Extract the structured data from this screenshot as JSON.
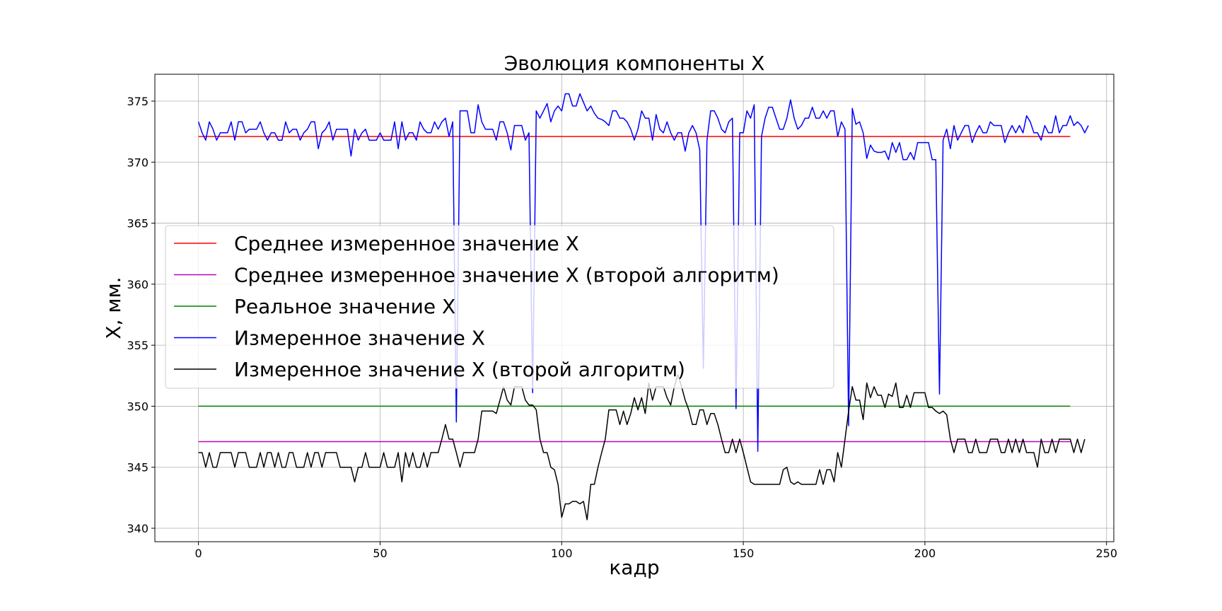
{
  "chart_data": {
    "type": "line",
    "title": "Эволюция компоненты X",
    "xlabel": "кадр",
    "ylabel": "X, мм.",
    "xlim": [
      -12,
      252
    ],
    "ylim": [
      338.9,
      377.2
    ],
    "xticks": [
      0,
      50,
      100,
      150,
      200,
      250
    ],
    "yticks": [
      340,
      345,
      350,
      355,
      360,
      365,
      370,
      375
    ],
    "grid": true,
    "legend_position": "center-left",
    "series": [
      {
        "name": "Среднее измеренное значение X",
        "color": "#ff0000",
        "x": [
          0,
          240
        ],
        "y": [
          372.1,
          372.1
        ]
      },
      {
        "name": "Среднее измеренное значение X (второй алгоритм)",
        "color": "#bf00bf",
        "x": [
          0,
          240
        ],
        "y": [
          347.1,
          347.1
        ]
      },
      {
        "name": "Реальное значение X",
        "color": "#008000",
        "x": [
          0,
          240
        ],
        "y": [
          350.0,
          350.0
        ]
      },
      {
        "name": "Измеренное значение X",
        "color": "#0000ff",
        "x_start": 0,
        "y": [
          373.3,
          372.4,
          371.8,
          373.3,
          372.7,
          371.8,
          372.4,
          372.4,
          372.4,
          373.3,
          371.8,
          373.3,
          373.3,
          372.4,
          372.7,
          372.7,
          372.7,
          373.3,
          372.4,
          371.8,
          372.4,
          372.4,
          371.8,
          371.8,
          373.3,
          372.4,
          372.7,
          372.7,
          371.8,
          372.4,
          372.7,
          373.3,
          373.3,
          371.1,
          372.4,
          372.7,
          373.3,
          371.8,
          372.7,
          372.7,
          372.7,
          372.7,
          370.5,
          372.7,
          371.8,
          372.4,
          372.7,
          371.8,
          371.8,
          371.8,
          372.4,
          371.8,
          371.8,
          371.8,
          373.3,
          371.1,
          373.3,
          371.8,
          372.4,
          372.4,
          371.8,
          373.3,
          372.7,
          372.4,
          372.4,
          373.3,
          372.7,
          373.3,
          373.6,
          372.1,
          373.3,
          348.7,
          374.2,
          374.2,
          374.2,
          372.4,
          372.4,
          374.7,
          373.3,
          372.7,
          372.7,
          372.7,
          371.8,
          373.3,
          373.3,
          372.4,
          371.0,
          373.0,
          373.0,
          373.0,
          371.8,
          372.4,
          351.1,
          374.2,
          373.6,
          374.2,
          374.8,
          373.3,
          374.2,
          374.6,
          374.2,
          375.6,
          375.6,
          374.6,
          374.6,
          375.6,
          374.9,
          374.2,
          374.6,
          374.0,
          373.6,
          373.5,
          373.3,
          373.0,
          374.2,
          374.2,
          373.6,
          373.6,
          373.3,
          372.7,
          371.8,
          372.7,
          374.2,
          373.6,
          373.6,
          371.8,
          373.9,
          372.7,
          372.4,
          373.3,
          372.4,
          371.8,
          372.4,
          372.4,
          370.9,
          372.4,
          373.0,
          372.4,
          371.0,
          353.1,
          371.8,
          374.2,
          374.2,
          373.6,
          372.7,
          372.4,
          373.3,
          373.6,
          349.8,
          372.4,
          372.4,
          374.2,
          373.6,
          374.7,
          346.3,
          372.1,
          373.6,
          374.5,
          374.5,
          373.6,
          372.7,
          372.7,
          373.6,
          375.1,
          373.6,
          372.7,
          373.0,
          373.6,
          373.6,
          374.5,
          373.6,
          373.6,
          374.2,
          373.6,
          374.2,
          374.2,
          372.1,
          373.3,
          372.7,
          348.4,
          374.4,
          373.1,
          373.3,
          372.4,
          370.3,
          371.4,
          370.9,
          370.8,
          370.8,
          370.9,
          370.2,
          371.6,
          370.8,
          371.6,
          370.2,
          370.2,
          370.8,
          370.2,
          371.6,
          371.6,
          371.6,
          371.6,
          370.2,
          370.2,
          351.0,
          371.8,
          372.7,
          371.1,
          373.0,
          371.8,
          372.4,
          373.0,
          373.0,
          371.6,
          372.4,
          373.0,
          372.4,
          372.4,
          373.3,
          373.0,
          373.0,
          373.0,
          371.6,
          372.4,
          373.0,
          372.4,
          373.0,
          372.4,
          373.8,
          373.3,
          372.4,
          372.4,
          371.8,
          373.0,
          372.4,
          372.4,
          373.8,
          372.4,
          373.0,
          373.0,
          373.8,
          373.0,
          373.3,
          373.0,
          372.4,
          373.0
        ]
      },
      {
        "name": "Измеренное значение X (второй алгоритм)",
        "color": "#000000",
        "x_start": 0,
        "y": [
          346.2,
          346.2,
          345.0,
          346.2,
          345.0,
          345.0,
          346.2,
          346.2,
          346.2,
          346.2,
          345.0,
          346.2,
          346.2,
          346.2,
          345.0,
          345.0,
          345.0,
          346.2,
          345.0,
          346.2,
          346.2,
          345.0,
          346.2,
          345.0,
          345.0,
          346.2,
          346.2,
          345.0,
          345.0,
          345.0,
          346.2,
          345.0,
          346.2,
          346.2,
          345.0,
          346.2,
          346.2,
          346.2,
          346.2,
          345.0,
          345.0,
          345.0,
          345.0,
          343.8,
          345.0,
          345.0,
          346.2,
          345.0,
          345.0,
          345.0,
          345.0,
          346.2,
          345.0,
          345.0,
          345.0,
          346.2,
          343.8,
          346.2,
          345.0,
          346.2,
          345.0,
          345.0,
          346.2,
          345.0,
          346.2,
          346.2,
          346.2,
          347.3,
          348.5,
          347.3,
          347.3,
          346.2,
          345.0,
          346.2,
          346.2,
          346.2,
          346.2,
          347.3,
          349.6,
          349.6,
          349.6,
          349.6,
          349.4,
          350.5,
          351.6,
          350.5,
          350.1,
          351.6,
          351.6,
          351.6,
          350.5,
          350.1,
          350.1,
          349.7,
          347.3,
          346.2,
          346.2,
          345.0,
          344.8,
          343.6,
          340.9,
          342.0,
          342.0,
          342.2,
          342.2,
          342.0,
          342.2,
          340.7,
          343.6,
          343.6,
          345.0,
          346.2,
          347.3,
          349.7,
          349.7,
          349.7,
          348.5,
          349.6,
          348.5,
          349.4,
          350.7,
          349.7,
          350.7,
          349.4,
          351.9,
          350.5,
          351.6,
          351.6,
          351.6,
          350.7,
          350.1,
          351.6,
          352.6,
          351.6,
          350.5,
          349.7,
          348.5,
          348.5,
          349.7,
          349.7,
          348.5,
          349.4,
          349.4,
          348.5,
          347.3,
          346.2,
          346.2,
          347.3,
          346.2,
          347.3,
          346.2,
          345.0,
          343.8,
          343.6,
          343.6,
          343.6,
          343.6,
          343.6,
          343.6,
          343.6,
          343.6,
          344.8,
          345.0,
          343.8,
          343.6,
          343.8,
          343.6,
          343.6,
          343.6,
          343.6,
          343.6,
          344.8,
          343.6,
          344.8,
          344.8,
          343.8,
          346.2,
          345.0,
          347.3,
          349.6,
          351.6,
          350.5,
          350.5,
          348.9,
          351.9,
          350.7,
          351.6,
          350.9,
          350.9,
          349.9,
          351.0,
          350.8,
          351.9,
          349.9,
          349.9,
          350.9,
          349.9,
          351.1,
          351.1,
          351.1,
          351.1,
          349.9,
          349.9,
          349.6,
          349.4,
          349.6,
          349.3,
          347.3,
          346.2,
          347.3,
          347.3,
          347.3,
          346.2,
          346.2,
          347.3,
          346.2,
          346.2,
          346.2,
          347.3,
          347.3,
          347.3,
          346.2,
          346.2,
          347.3,
          346.2,
          347.3,
          346.2,
          347.3,
          346.2,
          346.2,
          346.2,
          345.0,
          347.3,
          346.2,
          346.2,
          347.3,
          346.2,
          347.3,
          347.3,
          347.3,
          347.3,
          346.2,
          347.3,
          346.2,
          347.3
        ]
      }
    ]
  }
}
